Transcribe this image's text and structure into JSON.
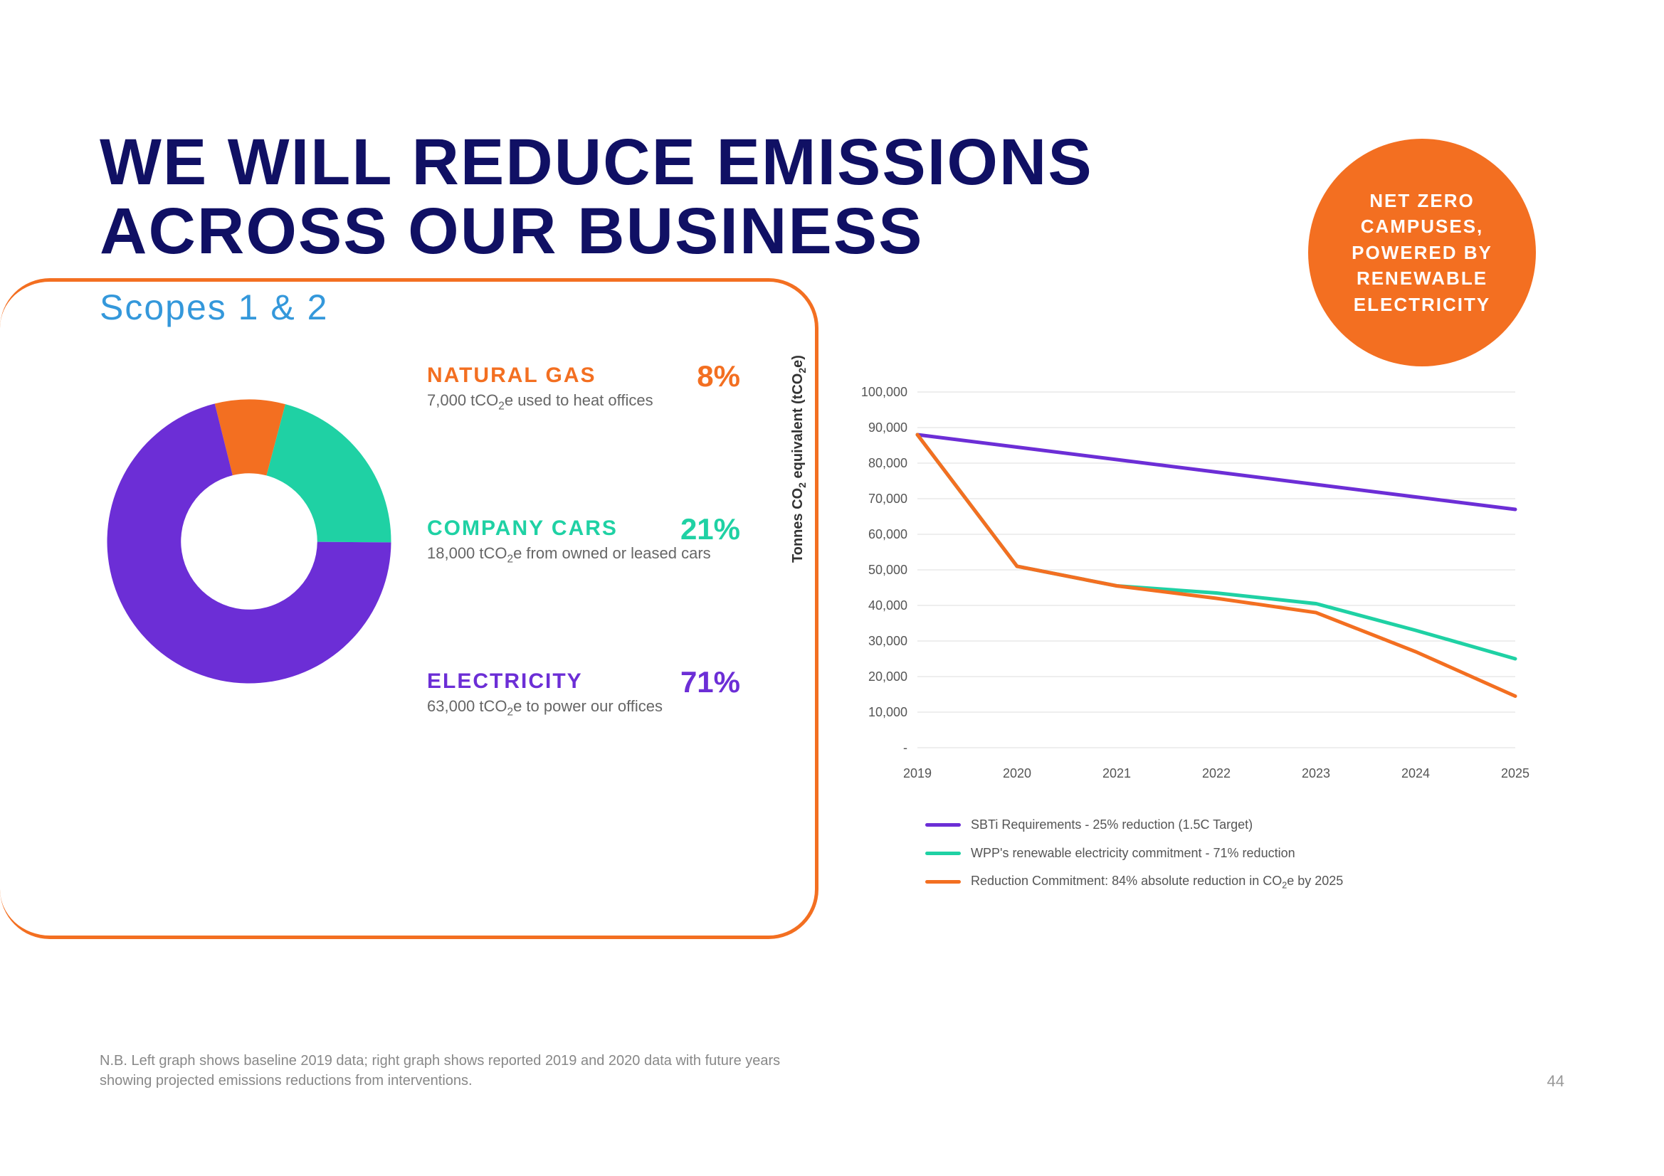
{
  "title_line1": "WE WILL REDUCE EMISSIONS",
  "title_line2": "ACROSS OUR BUSINESS",
  "subtitle": "Scopes 1 & 2",
  "badge_text": "NET ZERO CAMPUSES, POWERED BY RENEWABLE ELECTRICITY",
  "colors": {
    "navy": "#101064",
    "blue": "#3498db",
    "orange": "#f36f21",
    "purple": "#6c2ed6",
    "teal": "#1fd1a4",
    "grid": "#dddddd",
    "text_grey": "#666666"
  },
  "donut": {
    "type": "donut",
    "inner_radius_pct": 48,
    "slices": [
      {
        "key": "natural_gas",
        "label": "NATURAL GAS",
        "pct": 8,
        "color": "#f36f21",
        "desc_html": "7,000 tCO<sub>2</sub>e used to heat offices"
      },
      {
        "key": "company_cars",
        "label": "COMPANY CARS",
        "pct": 21,
        "color": "#1fd1a4",
        "desc_html": "18,000 tCO<sub>2</sub>e from owned or leased cars"
      },
      {
        "key": "electricity",
        "label": "ELECTRICITY",
        "pct": 71,
        "color": "#6c2ed6",
        "desc_html": "63,000 tCO<sub>2</sub>e to power our offices"
      }
    ],
    "start_angle_deg": -14
  },
  "line_chart": {
    "type": "line",
    "y_axis_label_html": "Tonnes CO<sub>2</sub> equivalent (tCO<sub>2</sub>e)",
    "x_categories": [
      "2019",
      "2020",
      "2021",
      "2022",
      "2023",
      "2024",
      "2025"
    ],
    "y_min": 0,
    "y_max": 100000,
    "y_tick_step": 10000,
    "y_tick_labels": [
      "-",
      "10,000",
      "20,000",
      "30,000",
      "40,000",
      "50,000",
      "60,000",
      "70,000",
      "80,000",
      "90,000",
      "100,000"
    ],
    "series": [
      {
        "key": "sbti",
        "color": "#6c2ed6",
        "width": 5,
        "label_html": "SBTi Requirements - 25% reduction (1.5C Target)",
        "values": [
          88000,
          84500,
          81000,
          77500,
          74000,
          70500,
          67000
        ]
      },
      {
        "key": "renewable",
        "color": "#1fd1a4",
        "width": 5,
        "label_html": "WPP's renewable electricity commitment - 71% reduction",
        "values": [
          88000,
          51000,
          45500,
          43500,
          40500,
          33000,
          25000
        ]
      },
      {
        "key": "reduction",
        "color": "#f36f21",
        "width": 5,
        "label_html": "Reduction Commitment: 84% absolute reduction in CO<sub>2</sub>e by 2025",
        "values": [
          88000,
          51000,
          45500,
          42000,
          38000,
          27000,
          14500
        ]
      }
    ],
    "axis_fontsize": 18,
    "axis_color": "#555555"
  },
  "footnote": "N.B. Left graph shows baseline 2019 data; right graph shows reported 2019 and 2020 data with future years showing projected emissions reductions from interventions.",
  "page_number": "44"
}
